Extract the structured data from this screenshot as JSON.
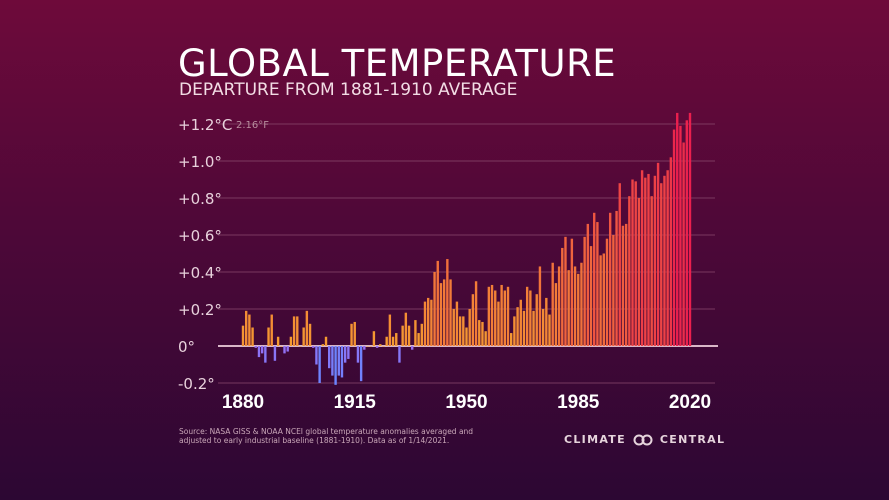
{
  "header": {
    "title": "GLOBAL TEMPERATURE",
    "subtitle": "DEPARTURE FROM 1881-1910 AVERAGE"
  },
  "footer": {
    "source": "Source: NASA GISS & NOAA NCEI global temperature anomalies averaged and adjusted to early industrial baseline (1881-1910). Data as of 1/14/2021.",
    "logo_left": "CLIMATE",
    "logo_right": "CENTRAL",
    "logo_icon": "linked-rings-icon"
  },
  "chart_data": {
    "type": "bar",
    "title": "GLOBAL TEMPERATURE",
    "subtitle": "DEPARTURE FROM 1881-1910 AVERAGE",
    "xlabel": "",
    "ylabel": "",
    "ylim": [
      -0.2,
      1.2
    ],
    "xlim": [
      1880,
      2020
    ],
    "y_ticks": [
      {
        "v": 1.2,
        "label": "+1.2°C",
        "alt": "2.16°F"
      },
      {
        "v": 1.0,
        "label": "+1.0°"
      },
      {
        "v": 0.8,
        "label": "+0.8°"
      },
      {
        "v": 0.6,
        "label": "+0.6°"
      },
      {
        "v": 0.4,
        "label": "+0.4°"
      },
      {
        "v": 0.2,
        "label": "+0.2°"
      },
      {
        "v": 0,
        "label": "0°"
      },
      {
        "v": -0.2,
        "label": "-0.2°"
      }
    ],
    "x_ticks": [
      "1880",
      "1915",
      "1950",
      "1985",
      "2020"
    ],
    "grid": true,
    "colors": {
      "negative_light": "#9a6cf2",
      "negative_dark": "#6a86ff",
      "positive_low": "#f5a030",
      "positive_high": "#ea1f4e",
      "grid": "#8a4a6e",
      "baseline": "#d9b7c8"
    },
    "start_year": 1880,
    "values": [
      0.11,
      0.19,
      0.17,
      0.1,
      -0.01,
      -0.06,
      -0.04,
      -0.09,
      0.1,
      0.17,
      -0.08,
      0.05,
      0.0,
      -0.04,
      -0.03,
      0.05,
      0.16,
      0.16,
      0.0,
      0.1,
      0.19,
      0.12,
      -0.01,
      -0.1,
      -0.2,
      0.01,
      0.05,
      -0.12,
      -0.16,
      -0.21,
      -0.16,
      -0.17,
      -0.09,
      -0.07,
      0.12,
      0.13,
      -0.09,
      -0.19,
      -0.02,
      0.0,
      0.0,
      0.08,
      -0.01,
      0.01,
      0.0,
      0.05,
      0.17,
      0.05,
      0.07,
      -0.09,
      0.11,
      0.18,
      0.11,
      -0.02,
      0.14,
      0.07,
      0.12,
      0.24,
      0.26,
      0.25,
      0.4,
      0.46,
      0.34,
      0.36,
      0.47,
      0.36,
      0.2,
      0.24,
      0.16,
      0.16,
      0.1,
      0.2,
      0.28,
      0.35,
      0.14,
      0.13,
      0.08,
      0.32,
      0.33,
      0.3,
      0.24,
      0.33,
      0.3,
      0.32,
      0.07,
      0.16,
      0.21,
      0.25,
      0.19,
      0.32,
      0.3,
      0.19,
      0.28,
      0.43,
      0.2,
      0.26,
      0.17,
      0.45,
      0.34,
      0.43,
      0.53,
      0.59,
      0.41,
      0.58,
      0.43,
      0.39,
      0.45,
      0.59,
      0.66,
      0.54,
      0.72,
      0.67,
      0.49,
      0.5,
      0.58,
      0.72,
      0.6,
      0.73,
      0.88,
      0.65,
      0.66,
      0.81,
      0.9,
      0.89,
      0.8,
      0.95,
      0.91,
      0.93,
      0.81,
      0.92,
      0.99,
      0.88,
      0.92,
      0.95,
      1.02,
      1.17,
      1.26,
      1.19,
      1.1,
      1.22,
      1.26
    ]
  }
}
